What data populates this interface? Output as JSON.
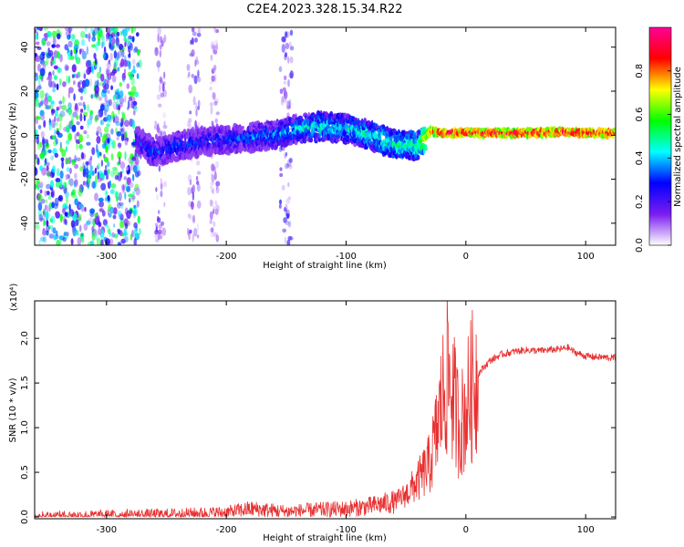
{
  "title": "C2E4.2023.328.15.34.R22",
  "chart_data": [
    {
      "type": "heatmap",
      "xlabel": "Height of straight line (km)",
      "ylabel": "Frequency (Hz)",
      "xlim": [
        -360,
        125
      ],
      "ylim": [
        -50,
        49
      ],
      "x_ticks": [
        -300,
        -200,
        -100,
        0,
        100
      ],
      "x_tick_labels": [
        "-300",
        "-200",
        "-100",
        "0",
        "100"
      ],
      "y_ticks": [
        -40,
        -20,
        0,
        20,
        40
      ],
      "y_tick_labels": [
        "-40",
        "-20",
        "0",
        "20",
        "40"
      ],
      "colorbar": {
        "label": "Normalized spectral amplitude",
        "range": [
          0,
          1
        ],
        "ticks": [
          0.0,
          0.2,
          0.4,
          0.6,
          0.8
        ],
        "tick_labels": [
          "0.0",
          "0.2",
          "0.4",
          "0.6",
          "0.8"
        ],
        "colormap": [
          "#ffffff",
          "#7a1cf0",
          "#0000ff",
          "#00ffff",
          "#00ff00",
          "#ffff00",
          "#ff0000",
          "#ff0099"
        ]
      },
      "noise_region": {
        "x_range": [
          -360,
          -272
        ],
        "freq_range": [
          -50,
          49
        ],
        "level": 0.12
      },
      "noise_stripes": [
        {
          "x": -255,
          "width": 8,
          "level": 0.06
        },
        {
          "x": -227,
          "width": 10,
          "level": 0.07
        },
        {
          "x": -210,
          "width": 6,
          "level": 0.05
        },
        {
          "x": -150,
          "width": 10,
          "level": 0.09
        }
      ],
      "ridge": {
        "x": [
          -275,
          -260,
          -240,
          -220,
          -200,
          -180,
          -160,
          -140,
          -120,
          -100,
          -80,
          -60,
          -40,
          -30,
          -20,
          -10,
          0,
          20,
          50,
          80,
          100,
          125
        ],
        "freq": [
          -2,
          -8,
          -5,
          -3,
          -2,
          -1,
          0,
          3,
          4,
          3,
          0,
          -4,
          -5,
          2,
          1,
          1,
          1,
          1,
          1,
          1.5,
          1,
          1
        ],
        "amplitude": [
          0.25,
          0.3,
          0.3,
          0.28,
          0.3,
          0.32,
          0.35,
          0.4,
          0.45,
          0.42,
          0.45,
          0.48,
          0.5,
          0.8,
          0.9,
          0.9,
          0.9,
          0.9,
          0.9,
          0.9,
          0.9,
          0.9
        ]
      }
    },
    {
      "type": "line",
      "xlabel": "Height of straight line (km)",
      "ylabel": "SNR (10 * v/v)",
      "y_multiplier": "(x10⁴)",
      "xlim": [
        -360,
        125
      ],
      "ylim": [
        -0.02,
        2.42
      ],
      "x_ticks": [
        -300,
        -200,
        -100,
        0,
        100
      ],
      "x_tick_labels": [
        "-300",
        "-200",
        "-100",
        "0",
        "100"
      ],
      "y_ticks": [
        0.0,
        0.5,
        1.0,
        1.5,
        2.0
      ],
      "y_tick_labels": [
        "0.0",
        "0.5",
        "1.0",
        "1.5",
        "2.0"
      ],
      "color": "#e83030",
      "series": [
        {
          "x": [
            -360,
            -300,
            -250,
            -200,
            -180,
            -150,
            -120,
            -100,
            -80,
            -60,
            -50,
            -40,
            -30,
            -25,
            -20,
            -15,
            -10,
            -5,
            0,
            5,
            10,
            20,
            30,
            40,
            50,
            60,
            70,
            80,
            85,
            90,
            100,
            110,
            125
          ],
          "y": [
            0.01,
            0.02,
            0.03,
            0.05,
            0.09,
            0.06,
            0.08,
            0.09,
            0.12,
            0.17,
            0.25,
            0.4,
            0.6,
            0.9,
            1.3,
            1.6,
            1.3,
            1.0,
            1.2,
            1.45,
            1.6,
            1.75,
            1.82,
            1.85,
            1.87,
            1.86,
            1.87,
            1.88,
            1.9,
            1.85,
            1.8,
            1.79,
            1.78
          ]
        }
      ]
    }
  ]
}
